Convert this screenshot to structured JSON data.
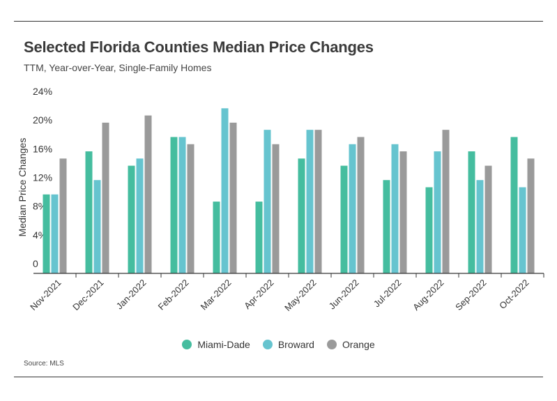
{
  "header": {
    "title": "Selected Florida Counties Median Price Changes",
    "subtitle": "TTM, Year-over-Year, Single-Family Homes"
  },
  "footer": {
    "source": "Source: MLS"
  },
  "colors": {
    "Miami-Dade": "#45bd9f",
    "Broward": "#66c4cf",
    "Orange": "#9a9a9a"
  },
  "chart_data": {
    "type": "bar",
    "ylabel": "Median Price Changes",
    "ylim": [
      0,
      24
    ],
    "yticks": [
      "0",
      "4%",
      "8%",
      "12%",
      "16%",
      "20%",
      "24%"
    ],
    "categories": [
      "Nov-2021",
      "Dec-2021",
      "Jan-2022",
      "Feb-2022",
      "Mar-2022",
      "Apr-2022",
      "May-2022",
      "Jun-2022",
      "Jul-2022",
      "Aug-2022",
      "Sep-2022",
      "Oct-2022"
    ],
    "series": [
      {
        "name": "Miami-Dade",
        "values": [
          11,
          17,
          15,
          19,
          10,
          10,
          16,
          15,
          13,
          12,
          17,
          19
        ]
      },
      {
        "name": "Broward",
        "values": [
          11,
          13,
          16,
          19,
          23,
          20,
          20,
          18,
          18,
          17,
          13,
          12
        ]
      },
      {
        "name": "Orange",
        "values": [
          16,
          21,
          22,
          18,
          21,
          18,
          20,
          19,
          17,
          20,
          15,
          16
        ]
      }
    ],
    "legend": "bottom",
    "grid": false
  }
}
